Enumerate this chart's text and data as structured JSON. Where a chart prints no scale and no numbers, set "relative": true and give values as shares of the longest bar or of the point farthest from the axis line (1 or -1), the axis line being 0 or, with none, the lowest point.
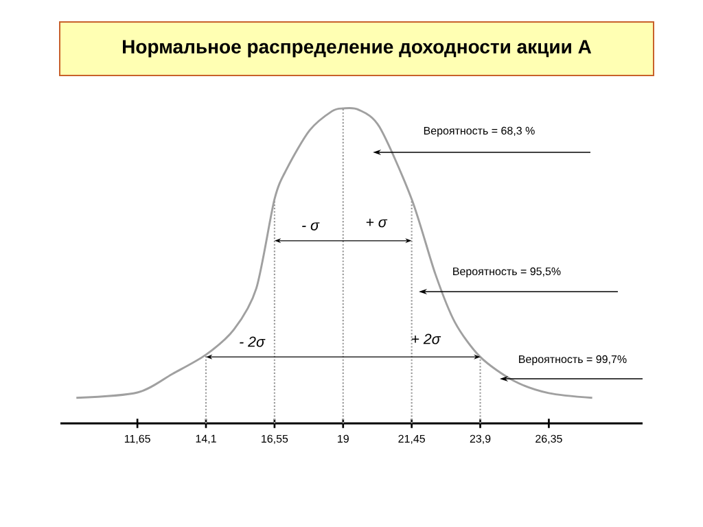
{
  "chart_data": {
    "type": "line",
    "title": "Нормальное распределение доходности акции А",
    "relative": true,
    "x": [
      9.47,
      11.65,
      12.9,
      14.1,
      15.1,
      15.9,
      16.55,
      17.0,
      17.8,
      18.6,
      19,
      19.55,
      20.3,
      21.45,
      22.3,
      23.0,
      23.9,
      25.1,
      26.35,
      27.9
    ],
    "values": [
      0.081,
      0.098,
      0.157,
      0.218,
      0.298,
      0.429,
      0.712,
      0.81,
      0.93,
      0.991,
      1,
      0.996,
      0.941,
      0.712,
      0.473,
      0.32,
      0.211,
      0.135,
      0.096,
      0.081
    ],
    "color": "#a0a0a0",
    "marker": "none",
    "line_style": "solid",
    "xlim": [
      8.9,
      29.7
    ],
    "xticks": [
      {
        "value": 11.65,
        "label": "11,65"
      },
      {
        "value": 14.1,
        "label": "14,1"
      },
      {
        "value": 16.55,
        "label": "16,55"
      },
      19,
      {
        "value": 21.45,
        "label": "21,45"
      },
      {
        "value": 23.9,
        "label": "23,9"
      },
      {
        "value": 26.35,
        "label": "26,35"
      }
    ],
    "ref_lines": [
      {
        "axis": "x",
        "value": 14.1,
        "line_style": "dotted",
        "color": "#999999"
      },
      {
        "axis": "x",
        "value": 16.55,
        "line_style": "dotted",
        "color": "#999999"
      },
      {
        "axis": "x",
        "value": 19,
        "line_style": "dotted",
        "color": "#999999"
      },
      {
        "axis": "x",
        "value": 21.45,
        "line_style": "dotted",
        "color": "#999999"
      },
      {
        "axis": "x",
        "value": 23.9,
        "line_style": "dotted",
        "color": "#999999"
      }
    ],
    "annotations": [
      "Вероятность = 68,3 %",
      "Вероятность = 95,5%",
      "Вероятность = 99,7%",
      "- σ",
      "+ σ",
      "- 2σ",
      "+ 2σ"
    ]
  }
}
